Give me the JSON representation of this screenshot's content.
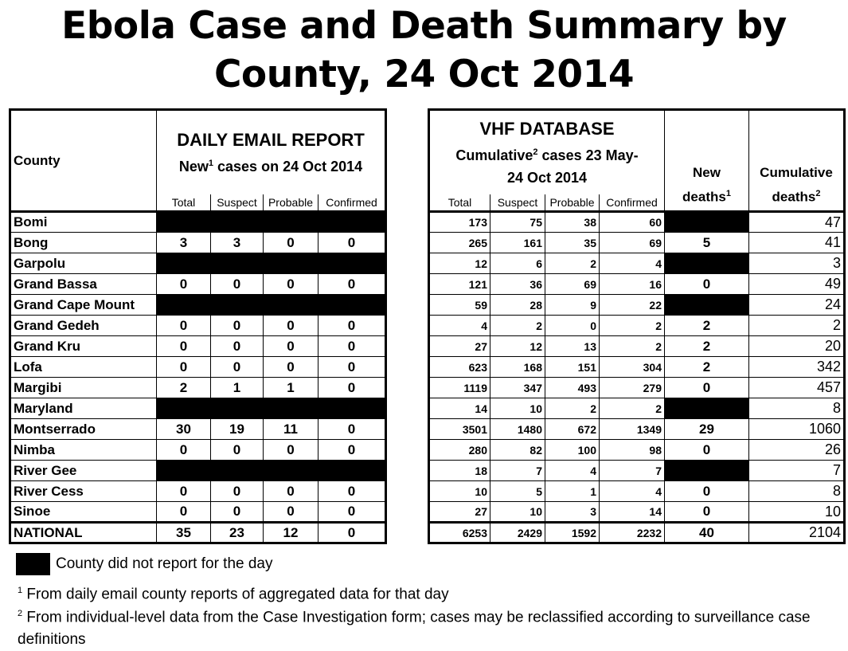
{
  "title_line1": "Ebola Case and Death Summary by",
  "title_line2": "County, 24 Oct 2014",
  "left_table": {
    "county_header": "County",
    "group_title": "DAILY EMAIL REPORT",
    "group_sub_pre": "New",
    "group_sub_sup": "1",
    "group_sub_post": " cases on 24 Oct 2014",
    "cols": [
      "Total",
      "Suspect",
      "Probable",
      "Confirmed"
    ]
  },
  "right_table": {
    "group_title": "VHF DATABASE",
    "group_sub_pre": "Cumulative",
    "group_sub_sup": "2",
    "group_sub_post": " cases 23 May-",
    "group_sub_line2": "24 Oct 2014",
    "cols": [
      "Total",
      "Suspect",
      "Probable",
      "Confirmed"
    ],
    "new_deaths_l1": "New",
    "new_deaths_l2": "deaths",
    "new_deaths_sup": "1",
    "cum_deaths_l1": "Cumulative",
    "cum_deaths_l2": "deaths",
    "cum_deaths_sup": "2"
  },
  "rows": [
    {
      "county": "Bomi",
      "daily": null,
      "vhf": [
        "173",
        "75",
        "38",
        "60"
      ],
      "new_deaths": null,
      "cum_deaths": "47"
    },
    {
      "county": "Bong",
      "daily": [
        "3",
        "3",
        "0",
        "0"
      ],
      "vhf": [
        "265",
        "161",
        "35",
        "69"
      ],
      "new_deaths": "5",
      "cum_deaths": "41"
    },
    {
      "county": "Garpolu",
      "daily": null,
      "vhf": [
        "12",
        "6",
        "2",
        "4"
      ],
      "new_deaths": null,
      "cum_deaths": "3"
    },
    {
      "county": "Grand Bassa",
      "daily": [
        "0",
        "0",
        "0",
        "0"
      ],
      "vhf": [
        "121",
        "36",
        "69",
        "16"
      ],
      "new_deaths": "0",
      "cum_deaths": "49"
    },
    {
      "county": "Grand Cape Mount",
      "daily": null,
      "vhf": [
        "59",
        "28",
        "9",
        "22"
      ],
      "new_deaths": null,
      "cum_deaths": "24"
    },
    {
      "county": "Grand Gedeh",
      "daily": [
        "0",
        "0",
        "0",
        "0"
      ],
      "vhf": [
        "4",
        "2",
        "0",
        "2"
      ],
      "new_deaths": "2",
      "cum_deaths": "2"
    },
    {
      "county": "Grand Kru",
      "daily": [
        "0",
        "0",
        "0",
        "0"
      ],
      "vhf": [
        "27",
        "12",
        "13",
        "2"
      ],
      "new_deaths": "2",
      "cum_deaths": "20"
    },
    {
      "county": "Lofa",
      "daily": [
        "0",
        "0",
        "0",
        "0"
      ],
      "vhf": [
        "623",
        "168",
        "151",
        "304"
      ],
      "new_deaths": "2",
      "cum_deaths": "342"
    },
    {
      "county": "Margibi",
      "daily": [
        "2",
        "1",
        "1",
        "0"
      ],
      "vhf": [
        "1119",
        "347",
        "493",
        "279"
      ],
      "new_deaths": "0",
      "cum_deaths": "457"
    },
    {
      "county": "Maryland",
      "daily": null,
      "vhf": [
        "14",
        "10",
        "2",
        "2"
      ],
      "new_deaths": null,
      "cum_deaths": "8"
    },
    {
      "county": "Montserrado",
      "daily": [
        "30",
        "19",
        "11",
        "0"
      ],
      "vhf": [
        "3501",
        "1480",
        "672",
        "1349"
      ],
      "new_deaths": "29",
      "cum_deaths": "1060"
    },
    {
      "county": "Nimba",
      "daily": [
        "0",
        "0",
        "0",
        "0"
      ],
      "vhf": [
        "280",
        "82",
        "100",
        "98"
      ],
      "new_deaths": "0",
      "cum_deaths": "26"
    },
    {
      "county": "River Gee",
      "daily": null,
      "vhf": [
        "18",
        "7",
        "4",
        "7"
      ],
      "new_deaths": null,
      "cum_deaths": "7"
    },
    {
      "county": "River Cess",
      "daily": [
        "0",
        "0",
        "0",
        "0"
      ],
      "vhf": [
        "10",
        "5",
        "1",
        "4"
      ],
      "new_deaths": "0",
      "cum_deaths": "8"
    },
    {
      "county": "Sinoe",
      "daily": [
        "0",
        "0",
        "0",
        "0"
      ],
      "vhf": [
        "27",
        "10",
        "3",
        "14"
      ],
      "new_deaths": "0",
      "cum_deaths": "10"
    },
    {
      "county": "NATIONAL",
      "daily": [
        "35",
        "23",
        "12",
        "0"
      ],
      "vhf": [
        "6253",
        "2429",
        "1592",
        "2232"
      ],
      "new_deaths": "40",
      "cum_deaths": "2104"
    }
  ],
  "legend_text": "County did not report for the day",
  "footnote1_sup": "1",
  "footnote1_text": " From daily email county reports of aggregated data for that day",
  "footnote2_sup": "2",
  "footnote2_text": " From individual-level data from the Case Investigation form; cases may be reclassified according to surveillance case definitions",
  "colors": {
    "no_report": "#000000"
  }
}
